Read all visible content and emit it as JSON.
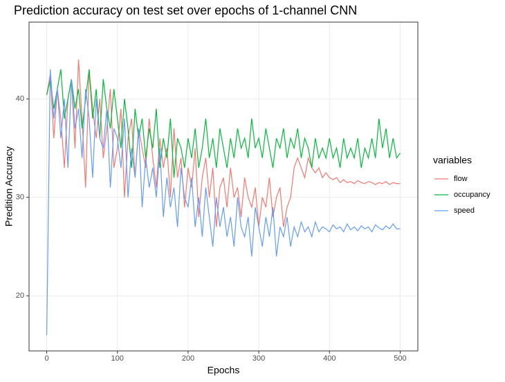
{
  "chart_data": {
    "type": "line",
    "title": "Prediction accuracy on test set over epochs of 1-channel CNN",
    "x_label": "Epochs",
    "y_label": "Predition Accuracy",
    "legend_title": "variables",
    "x": [
      0,
      5,
      10,
      15,
      20,
      25,
      30,
      35,
      40,
      45,
      50,
      55,
      60,
      65,
      70,
      75,
      80,
      85,
      90,
      95,
      100,
      105,
      110,
      115,
      120,
      125,
      130,
      135,
      140,
      145,
      150,
      155,
      160,
      165,
      170,
      175,
      180,
      185,
      190,
      195,
      200,
      205,
      210,
      215,
      220,
      225,
      230,
      235,
      240,
      245,
      250,
      255,
      260,
      265,
      270,
      275,
      280,
      285,
      290,
      295,
      300,
      305,
      310,
      315,
      320,
      325,
      330,
      335,
      340,
      345,
      350,
      355,
      360,
      365,
      370,
      375,
      380,
      385,
      390,
      395,
      400,
      405,
      410,
      415,
      420,
      425,
      430,
      435,
      440,
      445,
      450,
      455,
      460,
      465,
      470,
      475,
      480,
      485,
      490,
      495,
      500
    ],
    "series": [
      {
        "name": "flow",
        "color": "#F8766D",
        "values": [
          40.4,
          42.5,
          36,
          41,
          38,
          33,
          40,
          42,
          35,
          44,
          38,
          31,
          43,
          39,
          36,
          40,
          34,
          37,
          41,
          33,
          35,
          39,
          30,
          36,
          38,
          32,
          37,
          35,
          33,
          38,
          34,
          31,
          36,
          33,
          35,
          30,
          37,
          32,
          34,
          29,
          33,
          31,
          35,
          28,
          32,
          34,
          30,
          33,
          27,
          31,
          32,
          29,
          33,
          30,
          31,
          28,
          32,
          30,
          29,
          31,
          27,
          30,
          29,
          32,
          28,
          30,
          31,
          27,
          29,
          30,
          33,
          34,
          33,
          32,
          34,
          33,
          32.5,
          33,
          32,
          32.5,
          32,
          31.8,
          32,
          31.5,
          31.8,
          31.5,
          31.6,
          31.4,
          31.7,
          31.5,
          31.4,
          31.6,
          31.5,
          31.3,
          31.5,
          31.4,
          31.6,
          31.3,
          31.5,
          31.4,
          31.4
        ]
      },
      {
        "name": "occupancy",
        "color": "#00BA38",
        "values": [
          40.4,
          42,
          39,
          41,
          43,
          38,
          40,
          42,
          39,
          41,
          37,
          40,
          43,
          38,
          41,
          36,
          42,
          39,
          37,
          41,
          38,
          35,
          40,
          37,
          33,
          39,
          36,
          38,
          34,
          37,
          35,
          39,
          33,
          36,
          34,
          38,
          32,
          36,
          35,
          33,
          36,
          34,
          37,
          33,
          35,
          38,
          34,
          36,
          33,
          37,
          35,
          33,
          36,
          34,
          37,
          35,
          36,
          34,
          38,
          35,
          36,
          34,
          37,
          35,
          33,
          36,
          35,
          37,
          34,
          36,
          35,
          37,
          34,
          36,
          35,
          33,
          36,
          34,
          35,
          34,
          36,
          34,
          35,
          33,
          36,
          34,
          35,
          34,
          36,
          33,
          35,
          34,
          36,
          34,
          38,
          35,
          37,
          34,
          36,
          34,
          34.5
        ]
      },
      {
        "name": "speed",
        "color": "#619CFF",
        "values": [
          16,
          43,
          38,
          41,
          36,
          40,
          33,
          42,
          37,
          39,
          34,
          41,
          38,
          32,
          40,
          36,
          35,
          39,
          31,
          37,
          36,
          33,
          38,
          30,
          35,
          32,
          37,
          29,
          34,
          31,
          33,
          30,
          35,
          28,
          32,
          29,
          31,
          27,
          33,
          30,
          29,
          32,
          27,
          30,
          26,
          31,
          28,
          25,
          30,
          27,
          29,
          26,
          28,
          25,
          30,
          27,
          26,
          28,
          24,
          29,
          27,
          25,
          28,
          26,
          29,
          24,
          27,
          26,
          28,
          25,
          27,
          26,
          27.5,
          26.5,
          27,
          26,
          27.5,
          26.5,
          27,
          26.8,
          26.5,
          27.2,
          26.8,
          27,
          26.5,
          27.3,
          26.7,
          27,
          26.6,
          27.1,
          26.8,
          27,
          26.5,
          27.2,
          26.9,
          26.7,
          27.1,
          26.8,
          27.3,
          26.8,
          26.8
        ]
      }
    ],
    "xlim": [
      -25,
      525
    ],
    "ylim": [
      14.4,
      47.8
    ],
    "xticks": [
      0,
      100,
      200,
      300,
      400,
      500
    ],
    "yticks": [
      20,
      30,
      40
    ],
    "grid": true
  }
}
